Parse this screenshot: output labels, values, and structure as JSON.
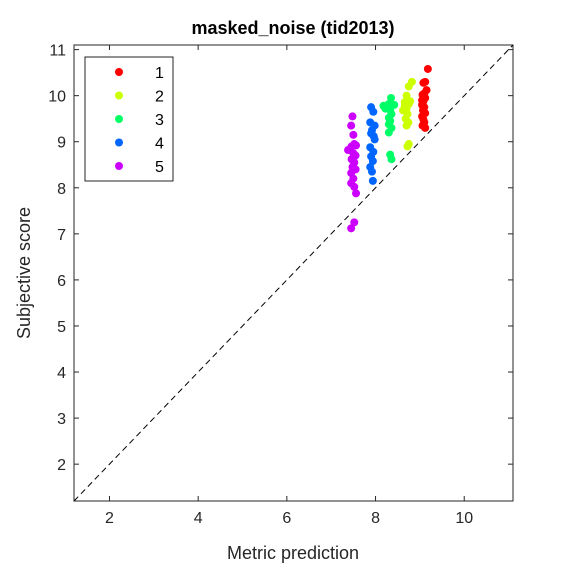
{
  "chart_data": {
    "type": "scatter",
    "title": "masked_noise (tid2013)",
    "xlabel": "Metric prediction",
    "ylabel": "Subjective score",
    "xlim": [
      1.2,
      11.1
    ],
    "ylim": [
      1.2,
      11.1
    ],
    "xticks": [
      2,
      4,
      6,
      8,
      10
    ],
    "yticks": [
      2,
      3,
      4,
      5,
      6,
      7,
      8,
      9,
      10,
      11
    ],
    "diagonal_line": true,
    "legend_position": "top-left",
    "grid": false,
    "series": [
      {
        "name": "1",
        "color": "#ff0000",
        "points": [
          [
            9.18,
            10.58
          ],
          [
            9.12,
            10.3
          ],
          [
            9.08,
            10.28
          ],
          [
            9.15,
            10.12
          ],
          [
            9.06,
            10.02
          ],
          [
            9.12,
            9.95
          ],
          [
            9.08,
            9.88
          ],
          [
            9.05,
            9.8
          ],
          [
            9.1,
            9.75
          ],
          [
            9.07,
            9.68
          ],
          [
            9.12,
            9.62
          ],
          [
            9.05,
            9.55
          ],
          [
            9.08,
            9.48
          ],
          [
            9.1,
            9.42
          ],
          [
            9.06,
            9.35
          ],
          [
            9.12,
            9.3
          ],
          [
            9.05,
            9.9
          ],
          [
            9.1,
            10.05
          ]
        ]
      },
      {
        "name": "2",
        "color": "#ccff00",
        "points": [
          [
            8.82,
            10.3
          ],
          [
            8.75,
            10.2
          ],
          [
            8.7,
            10.0
          ],
          [
            8.66,
            9.86
          ],
          [
            8.75,
            9.82
          ],
          [
            8.7,
            9.72
          ],
          [
            8.62,
            9.68
          ],
          [
            8.72,
            9.6
          ],
          [
            8.68,
            9.5
          ],
          [
            8.74,
            9.42
          ],
          [
            8.7,
            9.35
          ],
          [
            8.75,
            8.95
          ],
          [
            8.72,
            8.9
          ],
          [
            8.66,
            9.78
          ],
          [
            8.78,
            9.88
          ]
        ]
      },
      {
        "name": "3",
        "color": "#00ff66",
        "points": [
          [
            8.35,
            9.95
          ],
          [
            8.3,
            9.82
          ],
          [
            8.42,
            9.8
          ],
          [
            8.28,
            9.75
          ],
          [
            8.33,
            9.68
          ],
          [
            8.22,
            9.72
          ],
          [
            8.36,
            9.6
          ],
          [
            8.3,
            9.52
          ],
          [
            8.33,
            9.45
          ],
          [
            8.3,
            9.38
          ],
          [
            8.36,
            9.3
          ],
          [
            8.3,
            9.2
          ],
          [
            8.33,
            8.72
          ],
          [
            8.36,
            8.62
          ],
          [
            8.18,
            9.78
          ]
        ]
      },
      {
        "name": "4",
        "color": "#0066ff",
        "points": [
          [
            7.9,
            9.75
          ],
          [
            7.95,
            9.65
          ],
          [
            7.88,
            9.42
          ],
          [
            7.98,
            9.35
          ],
          [
            7.92,
            9.25
          ],
          [
            7.9,
            9.18
          ],
          [
            7.96,
            9.12
          ],
          [
            7.88,
            8.88
          ],
          [
            7.95,
            8.78
          ],
          [
            7.9,
            8.68
          ],
          [
            7.94,
            8.58
          ],
          [
            7.88,
            8.45
          ],
          [
            7.92,
            8.35
          ],
          [
            7.94,
            8.15
          ],
          [
            7.98,
            9.05
          ]
        ]
      },
      {
        "name": "5",
        "color": "#cc00ff",
        "points": [
          [
            7.48,
            9.55
          ],
          [
            7.45,
            9.35
          ],
          [
            7.5,
            9.15
          ],
          [
            7.52,
            8.95
          ],
          [
            7.46,
            8.9
          ],
          [
            7.56,
            8.92
          ],
          [
            7.38,
            8.82
          ],
          [
            7.5,
            8.75
          ],
          [
            7.55,
            8.7
          ],
          [
            7.46,
            8.62
          ],
          [
            7.52,
            8.55
          ],
          [
            7.48,
            8.45
          ],
          [
            7.55,
            8.4
          ],
          [
            7.45,
            8.32
          ],
          [
            7.5,
            8.2
          ],
          [
            7.45,
            8.1
          ],
          [
            7.52,
            8.02
          ],
          [
            7.56,
            7.88
          ],
          [
            7.52,
            7.25
          ],
          [
            7.45,
            7.12
          ],
          [
            7.48,
            8.6
          ]
        ]
      }
    ]
  }
}
